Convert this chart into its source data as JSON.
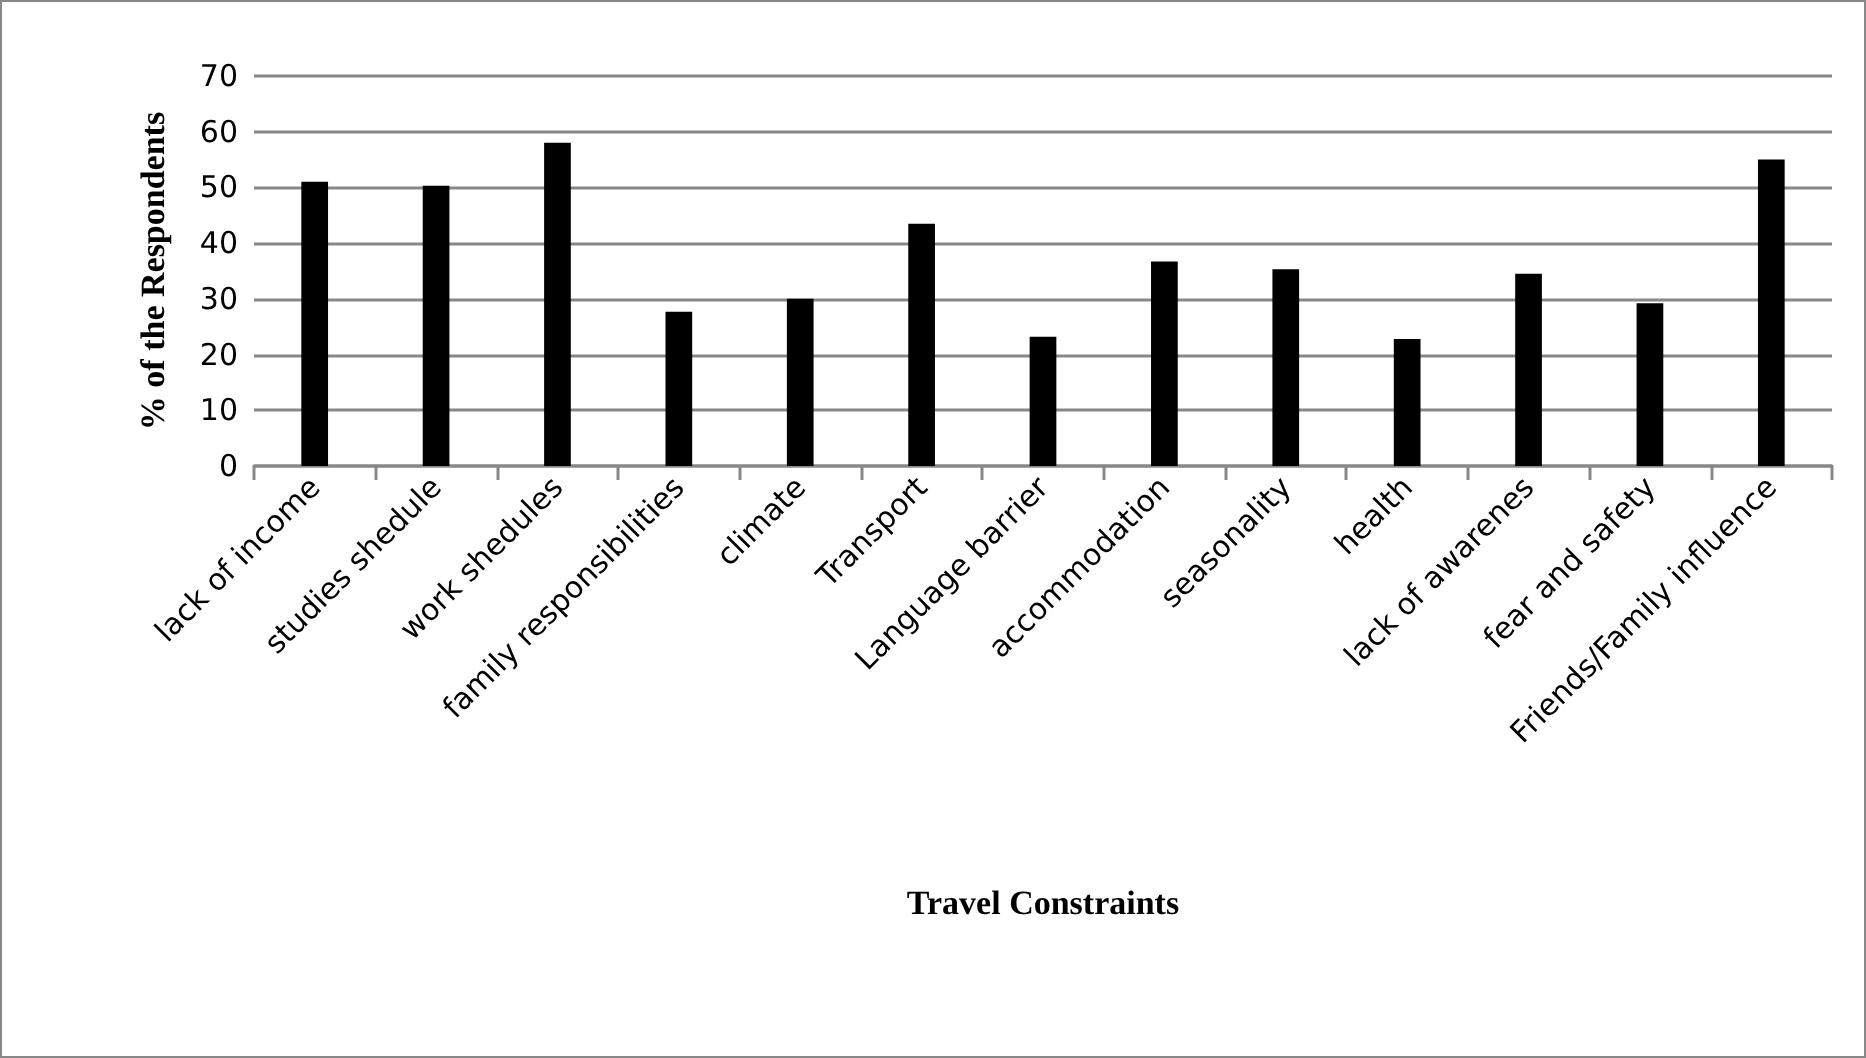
{
  "chart_data": {
    "type": "bar",
    "xlabel": "Travel Constraints",
    "ylabel": "% of the Respondents",
    "categories": [
      "lack of income",
      "studies shedule",
      "work shedules",
      "family responsibilities",
      "climate",
      "Transport",
      "Language barrier",
      "accommodation",
      "seasonality",
      "health",
      "lack of awarenes",
      "fear and safety",
      "Friends/Family influence"
    ],
    "values": [
      51,
      50.3,
      58,
      27.7,
      30,
      43.5,
      23.2,
      36.7,
      35.3,
      22.8,
      34.5,
      29.2,
      55
    ],
    "color": "#000000",
    "ylim": [
      0,
      70
    ],
    "yticks": [
      0,
      10,
      20,
      30,
      40,
      50,
      60,
      70
    ],
    "grid": "y"
  }
}
